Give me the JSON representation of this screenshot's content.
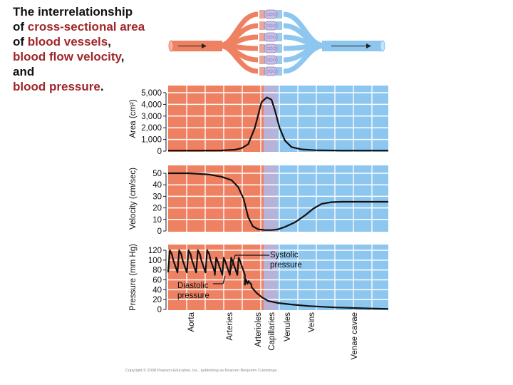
{
  "title": {
    "line1": "The interrelationship",
    "line2_pre": "of ",
    "line2_hl": "cross-sectional area",
    "line3_pre": "of ",
    "line3_hl": "blood vessels",
    "line3_post": ",",
    "line4_hl": "blood flow velocity",
    "line4_post": ",",
    "line5": "and",
    "line6_hl": "blood pressure",
    "line6_post": "."
  },
  "copyright": "Copyright © 2008 Pearson Education, Inc., publishing as Pearson Benjamin Cummings.",
  "colors": {
    "arterial": "#ef8163",
    "capillary": "#b8b2d8",
    "venous": "#8dc6ee",
    "grid": "#ffffff",
    "curve": "#111111",
    "title_highlight": "#a0262a"
  },
  "chart_data": [
    {
      "type": "line",
      "name": "cross-sectional-area",
      "ylabel": "Area (cm²)",
      "ylim": [
        0,
        5000
      ],
      "yticks": [
        0,
        1000,
        2000,
        3000,
        4000,
        5000
      ],
      "ytick_labels": [
        "0",
        "1,000",
        "2,000",
        "3,000",
        "4,000",
        "5,000"
      ],
      "x": [
        0,
        40,
        80,
        100,
        110,
        120,
        130,
        140,
        148,
        155,
        160,
        167,
        175,
        185,
        200,
        220,
        260,
        330
      ],
      "values": [
        50,
        50,
        60,
        120,
        250,
        600,
        2000,
        4200,
        4600,
        4400,
        3500,
        2000,
        900,
        350,
        150,
        80,
        50,
        50
      ]
    },
    {
      "type": "line",
      "name": "velocity",
      "ylabel": "Velocity (cm/sec)",
      "ylim": [
        0,
        50
      ],
      "yticks": [
        0,
        10,
        20,
        30,
        40,
        50
      ],
      "ytick_labels": [
        "0",
        "10",
        "20",
        "30",
        "40",
        "50"
      ],
      "x": [
        0,
        30,
        60,
        80,
        95,
        105,
        113,
        120,
        127,
        135,
        145,
        155,
        165,
        175,
        190,
        205,
        218,
        230,
        245,
        260,
        280,
        330
      ],
      "values": [
        50,
        50,
        49,
        47,
        44,
        38,
        28,
        12,
        4,
        1.5,
        0.8,
        0.8,
        1.5,
        3.5,
        7.5,
        13.5,
        19.5,
        23.5,
        25,
        25.3,
        25.3,
        25.3
      ]
    },
    {
      "type": "line",
      "name": "blood-pressure",
      "ylabel": "Pressure (mm Hg)",
      "ylim": [
        0,
        120
      ],
      "yticks": [
        0,
        20,
        40,
        60,
        80,
        100,
        120
      ],
      "ytick_labels": [
        "0",
        "20",
        "40",
        "60",
        "80",
        "100",
        "120"
      ],
      "annotations": [
        "Systolic pressure",
        "Diastolic pressure"
      ],
      "segments": [
        {
          "region": "Aorta",
          "x_start": 0,
          "x_end": 70,
          "systolic": 120,
          "diastolic": 70,
          "beats": 5
        },
        {
          "region": "Arteries",
          "x_start": 70,
          "x_end": 115,
          "systolic": 105,
          "diastolic": 65,
          "beats": 4
        },
        {
          "region": "Arterioles",
          "x_start": 115,
          "x_end": 125,
          "systolic": 60,
          "diastolic": 45,
          "beats": 1
        }
      ],
      "x_tail": [
        125,
        133,
        140,
        150,
        165,
        185,
        210,
        250,
        300,
        330
      ],
      "values_tail": [
        45,
        33,
        25,
        17,
        13,
        10,
        7,
        4,
        2,
        1
      ]
    }
  ],
  "regions": [
    "Aorta",
    "Arteries",
    "Arterioles",
    "Capillaries",
    "Venules",
    "Veins",
    "Venae cavae"
  ]
}
